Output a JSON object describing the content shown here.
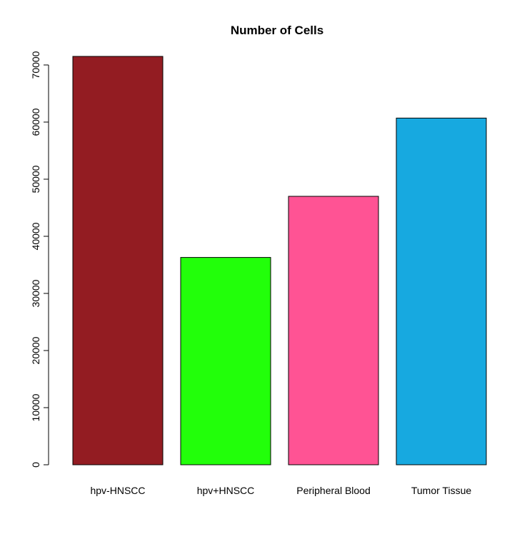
{
  "chart_data": {
    "type": "bar",
    "title": "Number of Cells",
    "xlabel": "",
    "ylabel": "",
    "categories": [
      "hpv-HNSCC",
      "hpv+HNSCC",
      "Peripheral Blood",
      "Tumor Tissue"
    ],
    "values": [
      71500,
      36300,
      47000,
      60700
    ],
    "colors": [
      "#931C22",
      "#22FF0A",
      "#FF5394",
      "#17A9E0"
    ],
    "ylim": [
      0,
      71500
    ],
    "yticks": [
      0,
      10000,
      20000,
      30000,
      40000,
      50000,
      60000,
      70000
    ],
    "grid": false,
    "legend": "none"
  }
}
